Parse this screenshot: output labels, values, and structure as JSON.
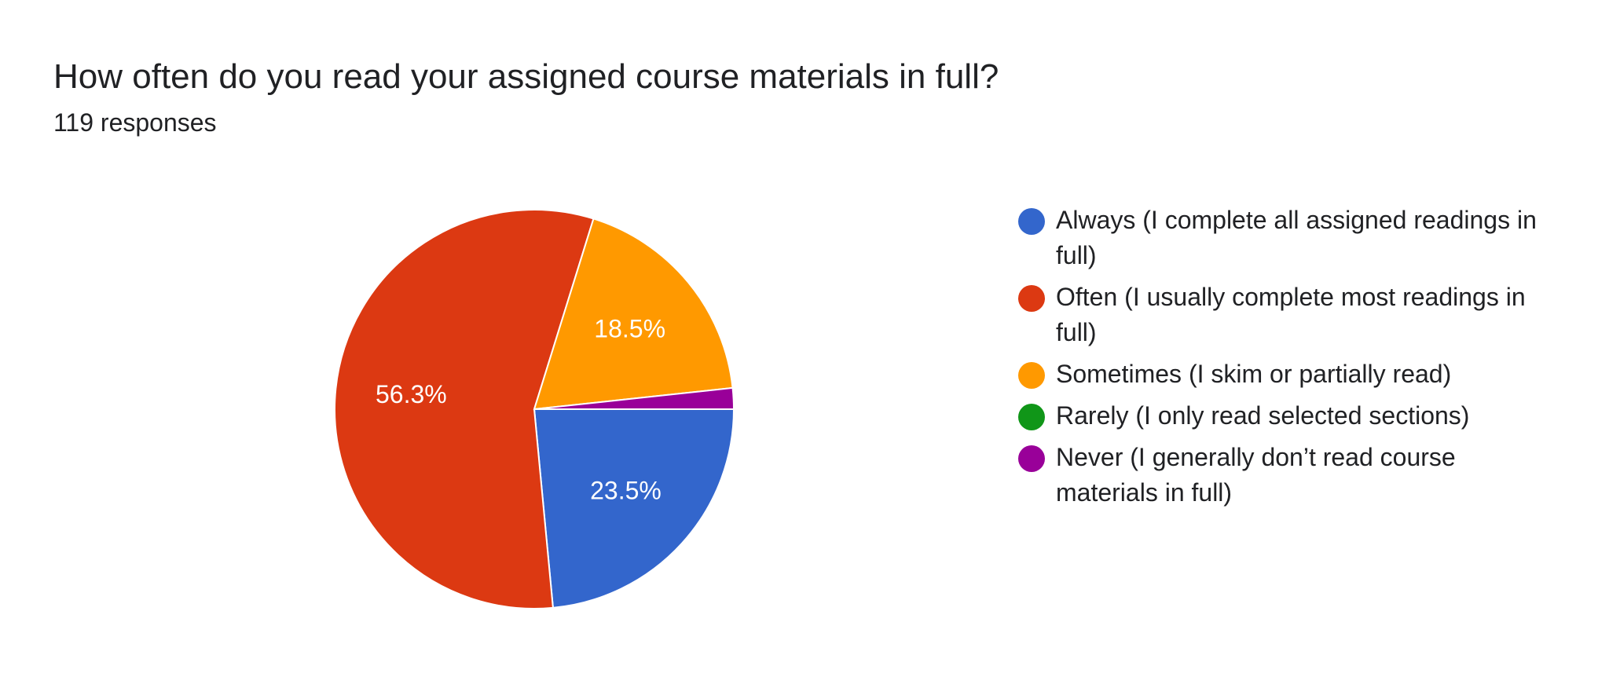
{
  "header": {
    "title": "How often do you read your assigned course materials in full?",
    "responses": "119 responses"
  },
  "chart_data": {
    "type": "pie",
    "total_responses": 119,
    "start_angle_deg": 90,
    "direction": "clockwise",
    "slices": [
      {
        "label": "Always (I complete all assigned readings in full)",
        "percent": 23.5,
        "display": "23.5%",
        "color": "#3366cc"
      },
      {
        "label": "Often (I usually complete most readings in full)",
        "percent": 56.3,
        "display": "56.3%",
        "color": "#dc3912"
      },
      {
        "label": "Sometimes (I skim or partially read)",
        "percent": 18.5,
        "display": "18.5%",
        "color": "#ff9900"
      },
      {
        "label": "Rarely (I only read selected sections)",
        "percent": 0.0,
        "display": "",
        "color": "#109618"
      },
      {
        "label": "Never (I generally don’t read course materials in full)",
        "percent": 1.7,
        "display": "",
        "color": "#990099"
      }
    ],
    "legend_position": "right"
  }
}
